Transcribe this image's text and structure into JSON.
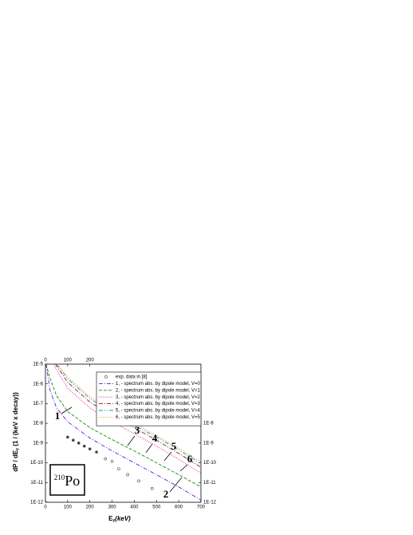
{
  "chart_data": {
    "type": "line",
    "xlabel": [
      "E",
      "γ",
      "(keV)"
    ],
    "ylabel": [
      "dP / dE",
      "γ",
      " (1 / (keV x decay))"
    ],
    "xlim": [
      0,
      700
    ],
    "xticks": [
      0,
      100,
      200,
      300,
      400,
      500,
      600,
      700
    ],
    "x2ticks": [
      0,
      100,
      200
    ],
    "ylim": [
      1e-12,
      1e-05
    ],
    "log_y": true,
    "yticks": [
      {
        "value": 1e-12,
        "label": "1E-12"
      },
      {
        "value": 1e-11,
        "label": "1E-11"
      },
      {
        "value": 1e-10,
        "label": "1E-10"
      },
      {
        "value": 1e-09,
        "label": "1E-9"
      },
      {
        "value": 1e-08,
        "label": "1E-8"
      },
      {
        "value": 1e-07,
        "label": "1E-7"
      },
      {
        "value": 1e-06,
        "label": "1E-6"
      },
      {
        "value": 1e-05,
        "label": "1E-5"
      }
    ],
    "y2ticks": [
      {
        "value": 1e-12,
        "label": "1E-12"
      },
      {
        "value": 1e-11,
        "label": "1E-11"
      },
      {
        "value": 1e-10,
        "label": "1E-10"
      },
      {
        "value": 1e-09,
        "label": "1E-9"
      },
      {
        "value": 1e-08,
        "label": "1E-8"
      }
    ],
    "points": {
      "name": "exp. data in [8]",
      "color": "#444444",
      "x": [
        100,
        125,
        150,
        175,
        200,
        230,
        270,
        300,
        330,
        370,
        420,
        480
      ],
      "values": [
        2e-09,
        1.4e-09,
        1e-09,
        7e-10,
        5e-10,
        3.5e-10,
        1.6e-10,
        1.2e-10,
        5e-11,
        2.5e-11,
        1.2e-11,
        5e-12
      ]
    },
    "series": [
      {
        "name": "1, - spectrum abs. by dipole model, V=0",
        "color": "#5a1fd6",
        "dash": "5 2 1 2",
        "x": [
          3,
          20,
          50,
          100,
          200,
          300,
          400,
          500,
          600,
          700
        ],
        "values": [
          1e-05,
          5e-07,
          6e-08,
          1.2e-08,
          1.8e-09,
          4e-10,
          1e-10,
          2.5e-11,
          6e-12,
          1.3e-12
        ]
      },
      {
        "name": "2, - spectrum abs. by dipole model, V=1",
        "color": "#1a8a1a",
        "dash": "4 2",
        "x": [
          3,
          20,
          50,
          100,
          200,
          300,
          400,
          500,
          600,
          700
        ],
        "values": [
          1e-05,
          2e-06,
          2.5e-07,
          4e-08,
          6e-09,
          1.5e-09,
          4e-10,
          1e-10,
          2.5e-11,
          6e-12
        ]
      },
      {
        "name": "3, - spectrum abs. by dipole model, V=2",
        "color": "#e0149a",
        "dash": "1 1.5",
        "x": [
          35,
          100,
          200,
          300,
          400,
          500,
          600,
          700
        ],
        "values": [
          1e-05,
          6e-07,
          6e-08,
          1.2e-08,
          3e-09,
          7e-10,
          1.5e-10,
          3e-11
        ]
      },
      {
        "name": "4, - spectrum abs. by dipole model, V=3",
        "color": "#8b1a1a",
        "dash": "5 2 1 2",
        "x": [
          45,
          100,
          200,
          300,
          400,
          500,
          600,
          700
        ],
        "values": [
          1e-05,
          1.2e-06,
          1.2e-07,
          2.5e-08,
          6e-09,
          1.4e-09,
          3e-10,
          6e-11
        ]
      },
      {
        "name": "5, - spectrum abs. by dipole model, V=4",
        "color": "#1a9a9a",
        "dash": "5 2 1 2 1 2",
        "x": [
          50,
          100,
          200,
          300,
          400,
          500,
          600,
          700
        ],
        "values": [
          1e-05,
          1.8e-06,
          1.8e-07,
          3.5e-08,
          8e-09,
          2e-09,
          4.5e-10,
          9e-11
        ]
      },
      {
        "name": "6, - spectrum abs. by dipole model, V=5",
        "color": "#f08c1a",
        "dash": "1 1.5",
        "x": [
          55,
          100,
          200,
          300,
          400,
          500,
          600,
          700
        ],
        "values": [
          1e-05,
          2.2e-06,
          2.2e-07,
          4.5e-08,
          1e-08,
          2.4e-09,
          5.5e-10,
          1.1e-10
        ]
      }
    ],
    "annotations": [
      "1",
      "2",
      "3",
      "4",
      "5",
      "6"
    ],
    "isotope": {
      "mass": "210",
      "symbol": "Po"
    }
  }
}
